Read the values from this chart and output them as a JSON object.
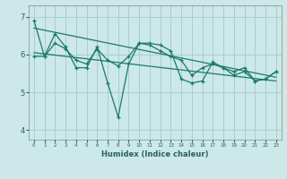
{
  "xlabel": "Humidex (Indice chaleur)",
  "background_color": "#cce8e8",
  "grid_color": "#aacece",
  "line_color": "#1a7a6a",
  "ylim": [
    3.75,
    7.3
  ],
  "xlim": [
    -0.5,
    23.5
  ],
  "yticks": [
    4,
    5,
    6,
    7
  ],
  "xticks": [
    0,
    1,
    2,
    3,
    4,
    5,
    6,
    7,
    8,
    9,
    10,
    11,
    12,
    13,
    14,
    15,
    16,
    17,
    18,
    19,
    20,
    21,
    22,
    23
  ],
  "line1_x": [
    0,
    1,
    2,
    3,
    4,
    5,
    6,
    7,
    8,
    9,
    10,
    11,
    12,
    13,
    14,
    15,
    16,
    17,
    18,
    19,
    20,
    21,
    22,
    23
  ],
  "line1_y": [
    6.9,
    5.95,
    6.55,
    6.2,
    5.65,
    5.65,
    6.2,
    5.25,
    4.35,
    5.75,
    6.3,
    6.3,
    6.25,
    6.1,
    5.35,
    5.25,
    5.3,
    5.8,
    5.65,
    5.45,
    5.55,
    5.3,
    5.35,
    5.55
  ],
  "line2_x": [
    0,
    1,
    2,
    3,
    4,
    5,
    6,
    7,
    8,
    9,
    10,
    11,
    12,
    13,
    14,
    15,
    16,
    17,
    18,
    19,
    20,
    21,
    22,
    23
  ],
  "line2_y": [
    5.95,
    5.95,
    6.3,
    6.15,
    5.85,
    5.75,
    6.15,
    5.85,
    5.7,
    5.95,
    6.3,
    6.25,
    6.1,
    5.95,
    5.85,
    5.45,
    5.65,
    5.75,
    5.65,
    5.55,
    5.65,
    5.3,
    5.35,
    5.55
  ],
  "trend1_x": [
    0,
    23
  ],
  "trend1_y": [
    6.7,
    5.4
  ],
  "trend2_x": [
    0,
    23
  ],
  "trend2_y": [
    6.05,
    5.3
  ]
}
